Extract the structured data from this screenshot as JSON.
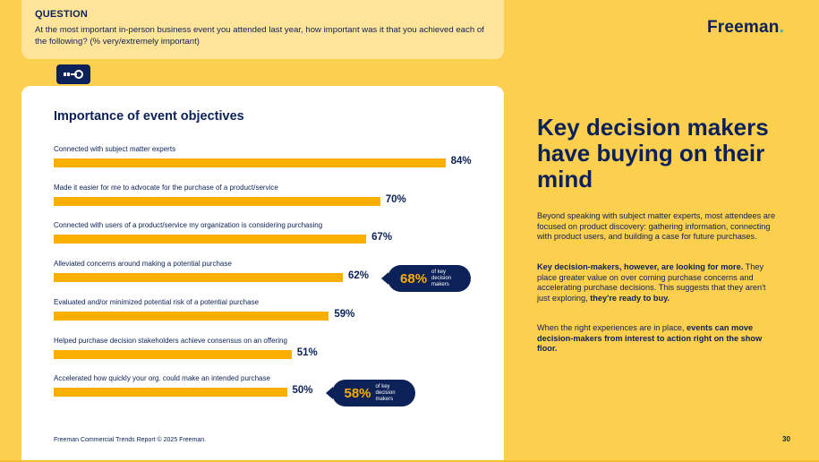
{
  "question": {
    "label": "QUESTION",
    "text": "At the most important in-person business event you attended last year, how important was it that you achieved each of the following? (% very/extremely important)"
  },
  "brand": {
    "name": "Freeman",
    "dot": "."
  },
  "chart_data": {
    "type": "bar",
    "orientation": "horizontal",
    "title": "Importance of event objectives",
    "categories": [
      "Connected with subject matter experts",
      "Made it easier for me to advocate for the purchase of a product/service",
      "Connected with users of a product/service my organization is considering purchasing",
      "Alleviated concerns around making a potential purchase",
      "Evaluated and/or minimized potential risk of a potential purchase",
      "Helped purchase decision stakeholders achieve consensus on an offering",
      "Accelerated how quickly your org. could make an intended purchase"
    ],
    "values": [
      84,
      70,
      67,
      62,
      59,
      51,
      50
    ],
    "value_labels": [
      "84%",
      "70%",
      "67%",
      "62%",
      "59%",
      "51%",
      "50%"
    ],
    "unit": "%",
    "xlim": [
      0,
      100
    ],
    "bar_color": "#FBAF00",
    "annotations": [
      {
        "category_index": 3,
        "value": "68%",
        "note": "of key decision makers"
      },
      {
        "category_index": 6,
        "value": "58%",
        "note": "of key decision makers"
      }
    ]
  },
  "right_panel": {
    "headline": "Key decision makers have buying on their mind",
    "para1": "Beyond speaking with subject matter experts, most attendees are focused on product discovery: gathering information, connecting with product users, and building a case for future purchases.",
    "para2_bold": "Key decision-makers, however, are looking for more.",
    "para2_text": " They place greater value on over coming purchase concerns and accelerating purchase decisions. This suggests that they aren't just exploring, ",
    "para2_bold_end": "they're ready to buy.",
    "para3_text": "When the right experiences are in place, ",
    "para3_bold": "events can move decision-makers from interest to action right on the show floor."
  },
  "footer": {
    "text": "Freeman Commercial Trends Report © 2025 Freeman.",
    "page": "30"
  },
  "colors": {
    "navy": "#0B2157",
    "yellow_bg": "#FDCF4E",
    "bar": "#FBAF00",
    "accent_teal": "#2BB3CF"
  }
}
